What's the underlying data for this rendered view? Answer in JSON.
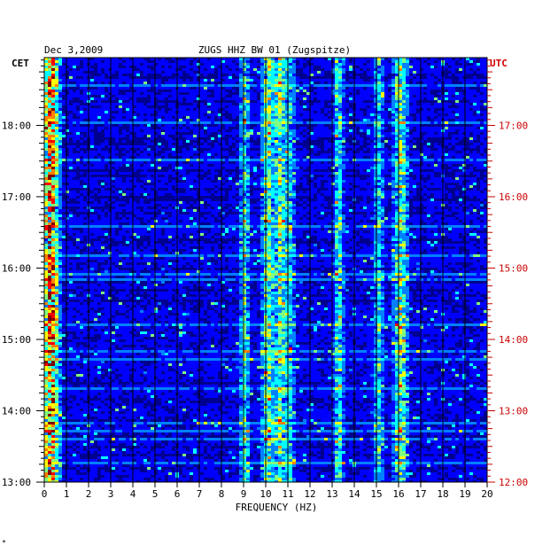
{
  "chart_data": {
    "type": "heatmap",
    "date": "Dec 3,2009",
    "title": "ZUGS HHZ BW 01 (Zugspitze)",
    "xlabel": "FREQUENCY (HZ)",
    "left_axis_label": "CET",
    "right_axis_label": "UTC",
    "xlim": [
      0,
      20
    ],
    "x_ticks": [
      "0",
      "1",
      "2",
      "3",
      "4",
      "5",
      "6",
      "7",
      "8",
      "9",
      "10",
      "11",
      "12",
      "13",
      "14",
      "15",
      "16",
      "17",
      "18",
      "19",
      "20"
    ],
    "time_range_cet_hours": [
      13.0,
      18.95
    ],
    "left_ticks": [
      "18:00",
      "17:00",
      "16:00",
      "15:00",
      "14:00",
      "13:00"
    ],
    "right_ticks": [
      "17:00",
      "16:00",
      "15:00",
      "14:00",
      "13:00",
      "12:00"
    ],
    "grid": true,
    "colormap": [
      "#00008f",
      "#0000ff",
      "#0080ff",
      "#00ffff",
      "#80ff80",
      "#ffff00",
      "#ff8000",
      "#ff0000",
      "#800000"
    ],
    "hot_bands_hz": [
      {
        "center": 0.3,
        "width": 0.35,
        "strength": 0.75
      },
      {
        "center": 9.05,
        "width": 0.2,
        "strength": 0.35
      },
      {
        "center": 10.1,
        "width": 0.25,
        "strength": 0.45
      },
      {
        "center": 10.65,
        "width": 0.25,
        "strength": 0.45
      },
      {
        "center": 11.1,
        "width": 0.2,
        "strength": 0.3
      },
      {
        "center": 13.3,
        "width": 0.2,
        "strength": 0.35
      },
      {
        "center": 15.1,
        "width": 0.2,
        "strength": 0.3
      },
      {
        "center": 16.1,
        "width": 0.3,
        "strength": 0.45
      }
    ],
    "colors": {
      "left_axis": "#000000",
      "right_axis": "#cc0000",
      "grid": "#000000"
    }
  },
  "footer_mark": "*"
}
